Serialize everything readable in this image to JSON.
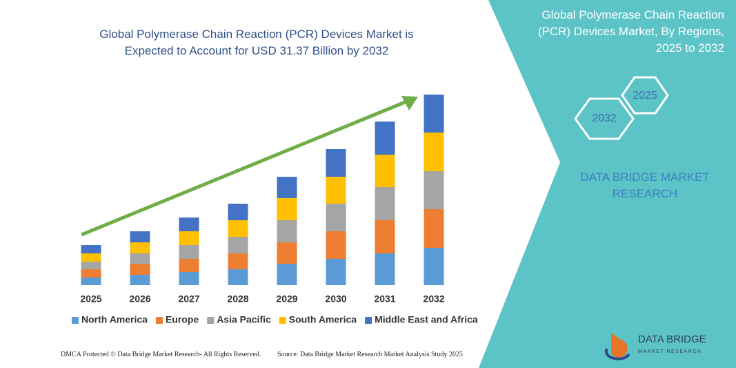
{
  "chart_data": {
    "type": "stacked-bar",
    "title": "Global Polymerase Chain Reaction (PCR) Devices Market is Expected to Account for USD 31.37 Billion by 2032",
    "categories": [
      "2025",
      "2026",
      "2027",
      "2028",
      "2029",
      "2030",
      "2031",
      "2032"
    ],
    "series": [
      {
        "name": "North America",
        "color": "#5b9bd5",
        "values": [
          11,
          15,
          19,
          23,
          31,
          38,
          46,
          54
        ]
      },
      {
        "name": "Europe",
        "color": "#ed7d31",
        "values": [
          12,
          16,
          19,
          23,
          31,
          40,
          48,
          56
        ]
      },
      {
        "name": "Asia Pacific",
        "color": "#a5a5a5",
        "values": [
          11,
          15,
          20,
          24,
          32,
          40,
          48,
          55
        ]
      },
      {
        "name": "South America",
        "color": "#ffc000",
        "values": [
          12,
          16,
          20,
          24,
          32,
          39,
          47,
          56
        ]
      },
      {
        "name": "Middle East and Africa",
        "color": "#4472c4",
        "values": [
          12,
          16,
          20,
          24,
          31,
          40,
          48,
          55
        ]
      }
    ]
  },
  "panel": {
    "title": "Global Polymerase Chain Reaction (PCR) Devices Market, By Regions, 2025 to 2032",
    "hex_start": "2025",
    "hex_end": "2032",
    "brand": "DATA BRIDGE MARKET RESEARCH"
  },
  "logo": {
    "name": "DATA BRIDGE",
    "tagline": "MARKET RESEARCH"
  },
  "footer": {
    "left": "DMCA Protected © Data Bridge Market Research- All Rights Reserved.",
    "right": "Source: Data Bridge Market Research  Market Analysis Study 2025"
  }
}
